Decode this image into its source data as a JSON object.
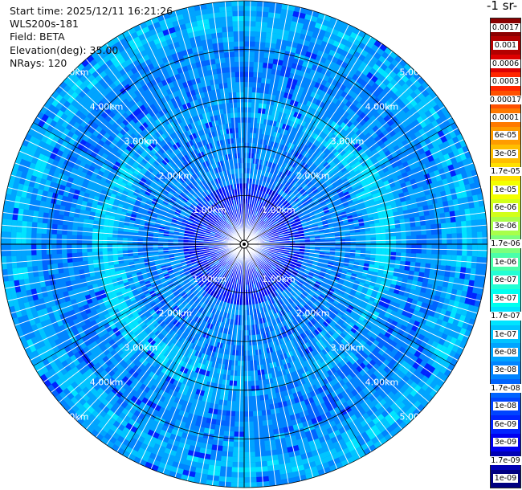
{
  "header": {
    "start_time": "Start time: 2025/12/11 16:21:26",
    "instrument": "WLS200s-181",
    "field": "Field: BETA",
    "elevation": "Elevation(deg): 35.00",
    "nrays": "NRays: 120"
  },
  "colorbar": {
    "title": "-1 sr-",
    "bins": [
      {
        "label": "0.0017",
        "color": "#8b0000"
      },
      {
        "label": "0.001",
        "color": "#b30000"
      },
      {
        "label": "0.0006",
        "color": "#dd0000"
      },
      {
        "label": "0.0003",
        "color": "#ff2600"
      },
      {
        "label": "0.00017",
        "color": "#ff5000"
      },
      {
        "label": "0.0001",
        "color": "#ff7a00"
      },
      {
        "label": "6e-05",
        "color": "#ff9c00"
      },
      {
        "label": "3e-05",
        "color": "#ffbe00"
      },
      {
        "label": "1.7e-05",
        "color": "#ffe000"
      },
      {
        "label": "1e-05",
        "color": "#f4ff00"
      },
      {
        "label": "6e-06",
        "color": "#d2ff1a"
      },
      {
        "label": "3e-06",
        "color": "#a8ff4a"
      },
      {
        "label": "1.7e-06",
        "color": "#7cff7c"
      },
      {
        "label": "1e-06",
        "color": "#4affaa"
      },
      {
        "label": "6e-07",
        "color": "#24ffd4"
      },
      {
        "label": "3e-07",
        "color": "#00fff0"
      },
      {
        "label": "1.7e-07",
        "color": "#00e4ff"
      },
      {
        "label": "1e-07",
        "color": "#00c4ff"
      },
      {
        "label": "6e-08",
        "color": "#00a4ff"
      },
      {
        "label": "3e-08",
        "color": "#0084ff"
      },
      {
        "label": "1.7e-08",
        "color": "#0064ff"
      },
      {
        "label": "1e-08",
        "color": "#0044ff"
      },
      {
        "label": "6e-09",
        "color": "#0024ff"
      },
      {
        "label": "3e-09",
        "color": "#0000f0"
      },
      {
        "label": "1.7e-09",
        "color": "#0000b4"
      },
      {
        "label": "1e-09",
        "color": "#000080"
      }
    ]
  },
  "range_rings": [
    {
      "km": 1,
      "label": "1.00km"
    },
    {
      "km": 2,
      "label": "2.00km"
    },
    {
      "km": 3,
      "label": "3.00km"
    },
    {
      "km": 4,
      "label": "4.00km"
    },
    {
      "km": 5,
      "label": "5.00km"
    }
  ],
  "palette": {
    "ring": "#000000",
    "ray_gap": "#ffffff",
    "ring_label": "#ffffff"
  }
}
